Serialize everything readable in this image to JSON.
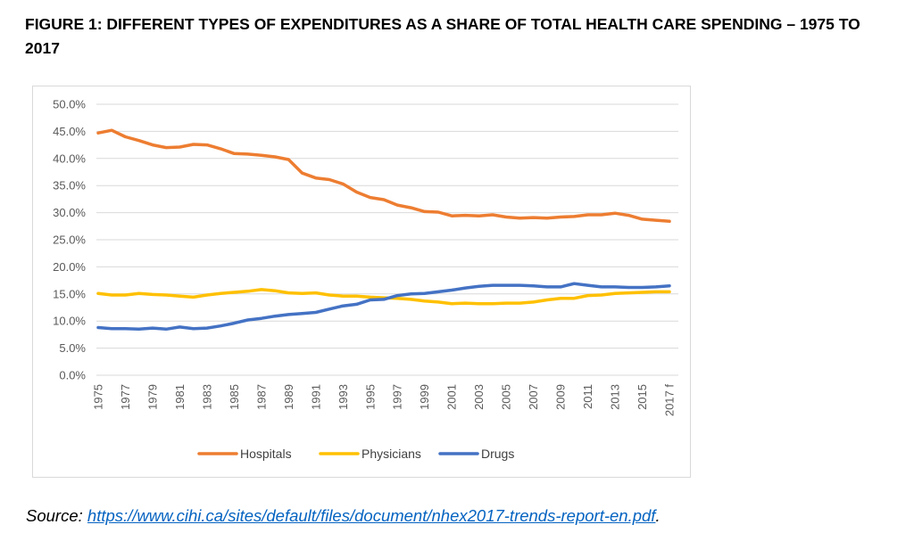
{
  "figure_title": "FIGURE 1: DIFFERENT TYPES OF EXPENDITURES AS A SHARE OF TOTAL HEALTH CARE SPENDING – 1975 TO 2017",
  "source": {
    "prefix": "Source: ",
    "link_text": "https://www.cihi.ca/sites/default/files/document/nhex2017-trends-report-en.pdf",
    "suffix": "."
  },
  "colors": {
    "hospitals": "#ed7d31",
    "physicians": "#ffc000",
    "drugs": "#4472c4",
    "gridline": "#d9d9d9",
    "tick_text": "#595959"
  },
  "chart_data": {
    "type": "line",
    "title": "",
    "xlabel": "",
    "ylabel": "",
    "x": [
      1975,
      1976,
      1977,
      1978,
      1979,
      1980,
      1981,
      1982,
      1983,
      1984,
      1985,
      1986,
      1987,
      1988,
      1989,
      1990,
      1991,
      1992,
      1993,
      1994,
      1995,
      1996,
      1997,
      1998,
      1999,
      2000,
      2001,
      2002,
      2003,
      2004,
      2005,
      2006,
      2007,
      2008,
      2009,
      2010,
      2011,
      2012,
      2013,
      2014,
      2015,
      2016,
      2017
    ],
    "x_tick_labels": [
      "1975",
      "1977",
      "1979",
      "1981",
      "1983",
      "1985",
      "1987",
      "1989",
      "1991",
      "1993",
      "1995",
      "1997",
      "1999",
      "2001",
      "2003",
      "2005",
      "2007",
      "2009",
      "2011",
      "2013",
      "2015",
      "2017 f"
    ],
    "x_tick_years": [
      1975,
      1977,
      1979,
      1981,
      1983,
      1985,
      1987,
      1989,
      1991,
      1993,
      1995,
      1997,
      1999,
      2001,
      2003,
      2005,
      2007,
      2009,
      2011,
      2013,
      2015,
      2017
    ],
    "ylim": [
      0,
      50
    ],
    "y_ticks": [
      0,
      5,
      10,
      15,
      20,
      25,
      30,
      35,
      40,
      45,
      50
    ],
    "y_tick_labels": [
      "0.0%",
      "5.0%",
      "10.0%",
      "15.0%",
      "20.0%",
      "25.0%",
      "30.0%",
      "35.0%",
      "40.0%",
      "45.0%",
      "50.0%"
    ],
    "grid": "horizontal",
    "legend_position": "bottom",
    "series": [
      {
        "name": "Hospitals",
        "color": "#ed7d31",
        "values": [
          44.7,
          45.2,
          44.0,
          43.3,
          42.5,
          42.0,
          42.1,
          42.6,
          42.5,
          41.8,
          40.9,
          40.8,
          40.6,
          40.3,
          39.8,
          37.3,
          36.4,
          36.1,
          35.3,
          33.8,
          32.8,
          32.4,
          31.4,
          30.9,
          30.2,
          30.1,
          29.4,
          29.5,
          29.4,
          29.6,
          29.2,
          29.0,
          29.1,
          29.0,
          29.2,
          29.3,
          29.6,
          29.6,
          29.9,
          29.5,
          28.8,
          28.6,
          28.4
        ]
      },
      {
        "name": "Physicians",
        "color": "#ffc000",
        "values": [
          15.1,
          14.8,
          14.8,
          15.1,
          14.9,
          14.8,
          14.6,
          14.4,
          14.8,
          15.1,
          15.3,
          15.5,
          15.8,
          15.6,
          15.2,
          15.1,
          15.2,
          14.8,
          14.6,
          14.6,
          14.4,
          14.3,
          14.2,
          14.0,
          13.7,
          13.5,
          13.2,
          13.3,
          13.2,
          13.2,
          13.3,
          13.3,
          13.5,
          13.9,
          14.2,
          14.2,
          14.7,
          14.8,
          15.1,
          15.2,
          15.3,
          15.4,
          15.4
        ]
      },
      {
        "name": "Drugs",
        "color": "#4472c4",
        "values": [
          8.8,
          8.6,
          8.6,
          8.5,
          8.7,
          8.5,
          8.9,
          8.6,
          8.7,
          9.1,
          9.6,
          10.2,
          10.5,
          10.9,
          11.2,
          11.4,
          11.6,
          12.2,
          12.8,
          13.1,
          13.9,
          14.0,
          14.7,
          15.0,
          15.1,
          15.4,
          15.7,
          16.1,
          16.4,
          16.6,
          16.6,
          16.6,
          16.5,
          16.3,
          16.3,
          16.9,
          16.6,
          16.3,
          16.3,
          16.2,
          16.2,
          16.3,
          16.5
        ]
      }
    ]
  }
}
